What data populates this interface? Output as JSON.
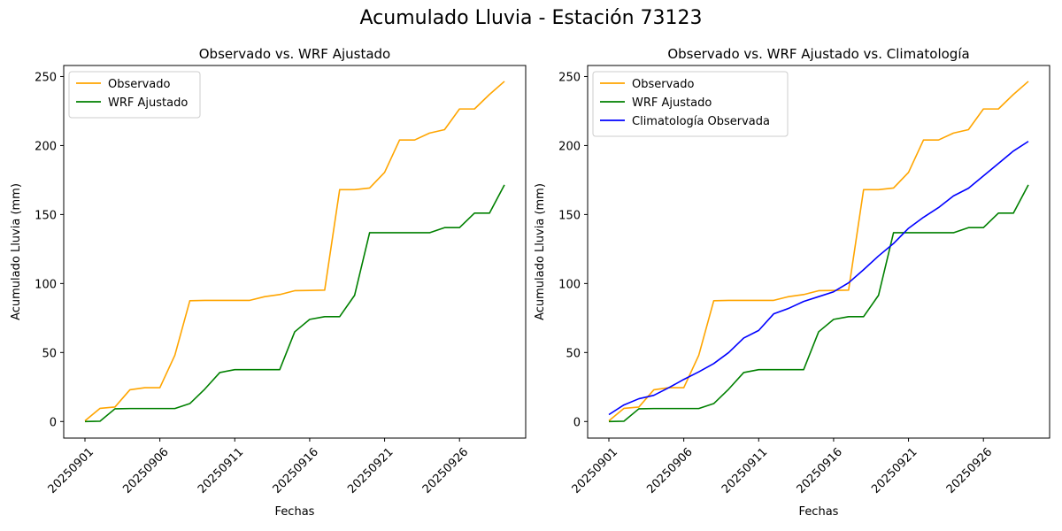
{
  "figure": {
    "title": "Acumulado Lluvia - Estación 73123"
  },
  "colors": {
    "observado": "#FFA500",
    "wrf": "#008000",
    "clima": "#0000FF"
  },
  "chart_data": [
    {
      "type": "line",
      "title": "Observado vs. WRF Ajustado",
      "xlabel": "Fechas",
      "ylabel": "Acumulado Lluvia (mm)",
      "x": [
        "20250901",
        "20250902",
        "20250903",
        "20250904",
        "20250905",
        "20250906",
        "20250907",
        "20250908",
        "20250909",
        "20250910",
        "20250911",
        "20250912",
        "20250913",
        "20250914",
        "20250915",
        "20250916",
        "20250917",
        "20250918",
        "20250919",
        "20250920",
        "20250921",
        "20250922",
        "20250923",
        "20250924",
        "20250925",
        "20250926",
        "20250927",
        "20250928",
        "20250929"
      ],
      "xticks": [
        "20250901",
        "20250906",
        "20250911",
        "20250916",
        "20250921",
        "20250926"
      ],
      "ylim": [
        -12,
        258
      ],
      "yticks": [
        0,
        50,
        100,
        150,
        200,
        250
      ],
      "grid": false,
      "legend_position": "upper-left",
      "series": [
        {
          "name": "Observado",
          "color_key": "observado",
          "values": [
            0.5,
            9.5,
            10.5,
            23.0,
            24.5,
            24.5,
            48.0,
            87.5,
            87.8,
            87.8,
            87.8,
            87.8,
            90.5,
            92.0,
            94.8,
            95.0,
            95.2,
            168.0,
            168.0,
            169.2,
            180.5,
            204.0,
            204.0,
            209.0,
            211.5,
            226.5,
            226.5,
            237.0,
            246.5
          ]
        },
        {
          "name": "WRF Ajustado",
          "color_key": "wrf",
          "values": [
            0.0,
            0.2,
            9.2,
            9.4,
            9.4,
            9.4,
            9.4,
            13.0,
            23.5,
            35.5,
            37.6,
            37.6,
            37.6,
            37.6,
            65.0,
            74.0,
            76.0,
            76.0,
            91.5,
            136.8,
            136.8,
            136.8,
            136.8,
            136.8,
            140.5,
            140.5,
            151.0,
            151.0,
            171.5
          ]
        }
      ]
    },
    {
      "type": "line",
      "title": "Observado vs. WRF Ajustado vs. Climatología",
      "xlabel": "Fechas",
      "ylabel": "Acumulado Lluvia (mm)",
      "x": [
        "20250901",
        "20250902",
        "20250903",
        "20250904",
        "20250905",
        "20250906",
        "20250907",
        "20250908",
        "20250909",
        "20250910",
        "20250911",
        "20250912",
        "20250913",
        "20250914",
        "20250915",
        "20250916",
        "20250917",
        "20250918",
        "20250919",
        "20250920",
        "20250921",
        "20250922",
        "20250923",
        "20250924",
        "20250925",
        "20250926",
        "20250927",
        "20250928",
        "20250929"
      ],
      "xticks": [
        "20250901",
        "20250906",
        "20250911",
        "20250916",
        "20250921",
        "20250926"
      ],
      "ylim": [
        -12,
        258
      ],
      "yticks": [
        0,
        50,
        100,
        150,
        200,
        250
      ],
      "grid": false,
      "legend_position": "upper-left",
      "series": [
        {
          "name": "Observado",
          "color_key": "observado",
          "values": [
            0.5,
            9.5,
            10.5,
            23.0,
            24.5,
            24.5,
            48.0,
            87.5,
            87.8,
            87.8,
            87.8,
            87.8,
            90.5,
            92.0,
            94.8,
            95.0,
            95.2,
            168.0,
            168.0,
            169.2,
            180.5,
            204.0,
            204.0,
            209.0,
            211.5,
            226.5,
            226.5,
            237.0,
            246.5
          ]
        },
        {
          "name": "WRF Ajustado",
          "color_key": "wrf",
          "values": [
            0.0,
            0.2,
            9.2,
            9.4,
            9.4,
            9.4,
            9.4,
            13.0,
            23.5,
            35.5,
            37.6,
            37.6,
            37.6,
            37.6,
            65.0,
            74.0,
            76.0,
            76.0,
            91.5,
            136.8,
            136.8,
            136.8,
            136.8,
            136.8,
            140.5,
            140.5,
            151.0,
            151.0,
            171.5
          ]
        },
        {
          "name": "Climatología Observada",
          "color_key": "clima",
          "values": [
            5.0,
            12.0,
            16.5,
            19.0,
            24.5,
            30.5,
            36.0,
            42.0,
            50.0,
            60.5,
            66.0,
            78.0,
            82.0,
            87.0,
            90.5,
            94.0,
            100.5,
            110.0,
            120.0,
            129.0,
            140.0,
            148.0,
            155.0,
            163.5,
            169.0,
            178.0,
            187.0,
            196.0,
            203.0
          ]
        }
      ]
    }
  ]
}
